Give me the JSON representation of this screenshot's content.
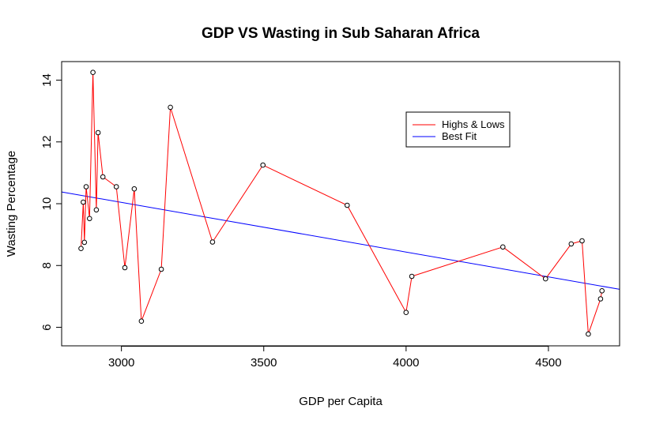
{
  "chart_data": {
    "type": "line",
    "title": "GDP VS Wasting in Sub Saharan Africa",
    "xlabel": "GDP per Capita",
    "ylabel": "Wasting Percentage",
    "xlim": [
      2790,
      4750
    ],
    "ylim": [
      5.4,
      14.6
    ],
    "x_ticks": [
      3000,
      3500,
      4000,
      4500
    ],
    "y_ticks": [
      6,
      8,
      10,
      12,
      14
    ],
    "grid": false,
    "legend_position": "top-right",
    "colors": {
      "highs_lows": "#ff0000",
      "best_fit": "#0000ff",
      "points": "#000000",
      "axes": "#000000"
    },
    "series": [
      {
        "name": "Highs & Lows",
        "points": [
          [
            2858,
            8.55
          ],
          [
            2866,
            10.05
          ],
          [
            2870,
            8.75
          ],
          [
            2876,
            10.55
          ],
          [
            2888,
            9.52
          ],
          [
            2900,
            14.25
          ],
          [
            2912,
            9.8
          ],
          [
            2918,
            12.3
          ],
          [
            2935,
            10.87
          ],
          [
            2982,
            10.55
          ],
          [
            3012,
            7.93
          ],
          [
            3045,
            10.48
          ],
          [
            3070,
            6.2
          ],
          [
            3140,
            7.88
          ],
          [
            3172,
            13.12
          ],
          [
            3320,
            8.76
          ],
          [
            3497,
            11.25
          ],
          [
            3793,
            9.95
          ],
          [
            4000,
            6.48
          ],
          [
            4020,
            7.65
          ],
          [
            4340,
            8.6
          ],
          [
            4490,
            7.57
          ],
          [
            4580,
            8.7
          ],
          [
            4618,
            8.8
          ],
          [
            4640,
            5.78
          ],
          [
            4683,
            6.92
          ],
          [
            4688,
            7.18
          ]
        ]
      },
      {
        "name": "Best Fit",
        "line": {
          "x": [
            2790,
            4750
          ],
          "y": [
            10.38,
            7.23
          ]
        }
      }
    ]
  }
}
